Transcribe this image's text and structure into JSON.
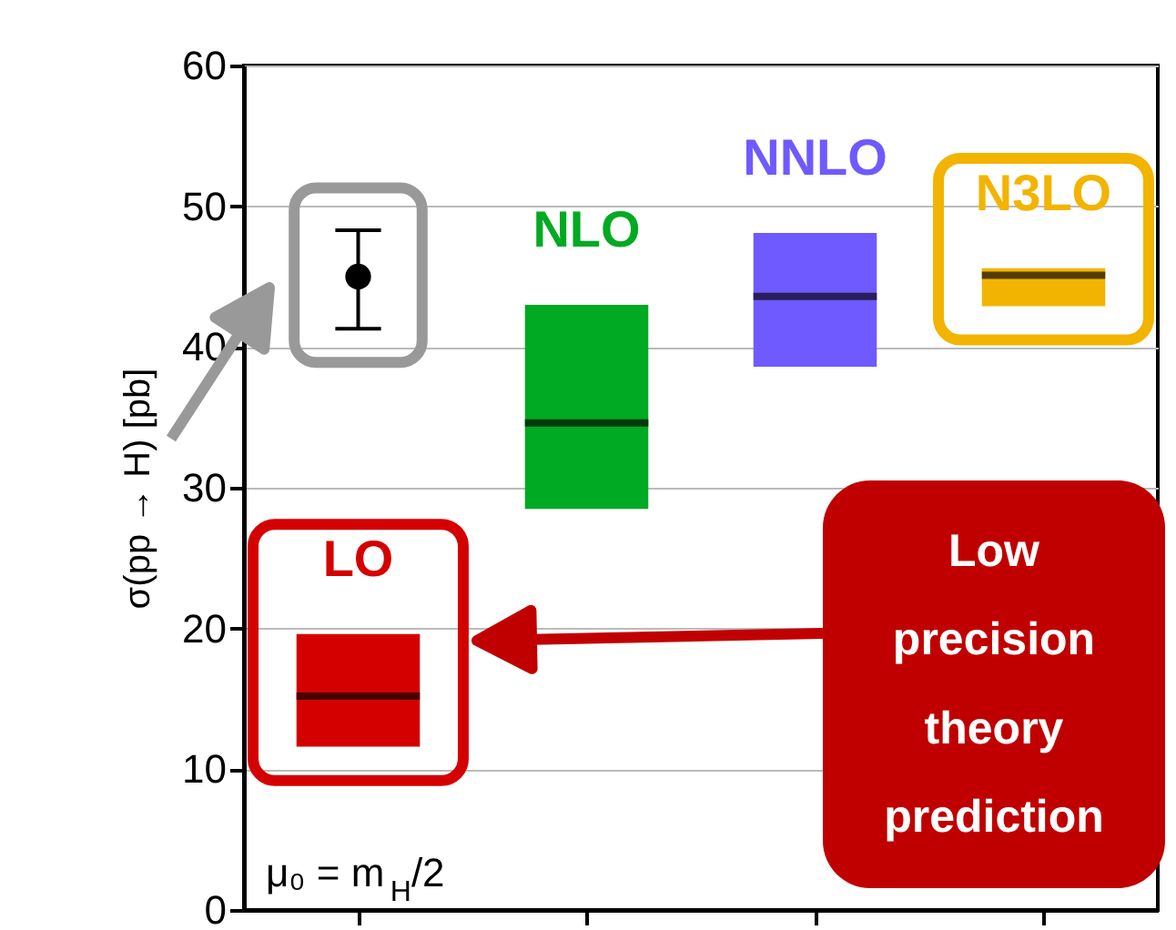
{
  "chart_data": {
    "type": "box",
    "ylabel": "σ(pp → H) [pb]",
    "categories": [
      null,
      null,
      null,
      null
    ],
    "ylim": [
      0,
      60
    ],
    "yticks": [
      0,
      10,
      20,
      30,
      40,
      50,
      60
    ],
    "grid": "y",
    "series": [
      {
        "type": "scatter",
        "color": "#000000",
        "marker": "circle",
        "values": [
          45,
          null,
          null,
          null
        ],
        "errors": [
          [
            41.3,
            48.3
          ],
          null,
          null,
          null
        ]
      },
      {
        "name": "LO",
        "color": "#d40000",
        "boxes": [
          {
            "low": 11.6,
            "q1": 11.6,
            "median": 15.2,
            "q3": 19.6,
            "high": 19.6
          },
          null,
          null,
          null
        ]
      },
      {
        "name": "NLO",
        "color": "#00aa22",
        "boxes": [
          null,
          {
            "low": 28.5,
            "q1": 28.5,
            "median": 34.6,
            "q3": 43.0,
            "high": 43.0
          },
          null,
          null
        ]
      },
      {
        "name": "NNLO",
        "color": "#6e5aff",
        "boxes": [
          null,
          null,
          {
            "low": 38.6,
            "q1": 38.6,
            "median": 43.6,
            "q3": 48.1,
            "high": 48.1
          },
          null
        ]
      },
      {
        "name": "N3LO",
        "color": "#f2b400",
        "boxes": [
          null,
          null,
          null,
          {
            "low": 42.9,
            "q1": 42.9,
            "median": 45.1,
            "q3": 45.6,
            "high": 45.6
          }
        ]
      }
    ],
    "annotations": [
      "μ₀ = m$_{H}$/2",
      "Low precision theory prediction"
    ]
  }
}
